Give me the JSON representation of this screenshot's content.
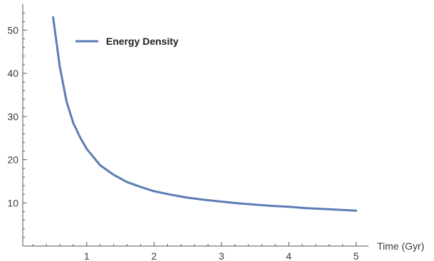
{
  "chart_data": {
    "type": "line",
    "title": "",
    "xlabel": "Time (Gyr)",
    "ylabel": "",
    "xlim": [
      0.05,
      5.1
    ],
    "ylim": [
      0,
      56
    ],
    "x_ticks": [
      1,
      2,
      3,
      4,
      5
    ],
    "x_tick_labels": [
      "1",
      "2",
      "3",
      "4",
      "5"
    ],
    "y_ticks": [
      10,
      20,
      30,
      40,
      50
    ],
    "y_tick_labels": [
      "10",
      "20",
      "30",
      "40",
      "50"
    ],
    "grid": false,
    "legend_position": "top-left",
    "series": [
      {
        "name": "Energy Density",
        "color": "#5b7db5",
        "x": [
          0.5,
          0.6,
          0.7,
          0.8,
          0.9,
          1.0,
          1.2,
          1.4,
          1.6,
          1.8,
          2.0,
          2.25,
          2.5,
          2.75,
          3.0,
          3.25,
          3.5,
          3.75,
          4.0,
          4.25,
          4.5,
          4.75,
          5.0
        ],
        "values": [
          53,
          41.5,
          33.5,
          28.5,
          25.2,
          22.5,
          18.7,
          16.5,
          14.8,
          13.7,
          12.7,
          11.9,
          11.2,
          10.7,
          10.3,
          9.9,
          9.6,
          9.3,
          9.1,
          8.8,
          8.6,
          8.4,
          8.2
        ]
      }
    ]
  }
}
